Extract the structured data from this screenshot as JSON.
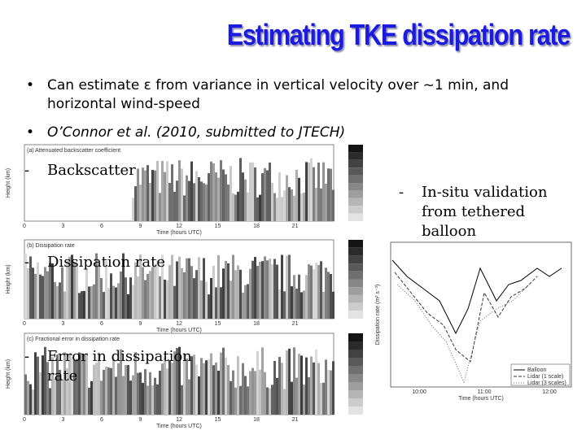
{
  "header": {
    "title": "Estimating TKE dissipation rate"
  },
  "bullets": [
    "Can estimate ε from variance in vertical velocity over ~1 min, and horizontal wind-speed",
    "O’Connor et al. (2010, submitted to JTECH)"
  ],
  "panels": [
    {
      "title": "(a) Attenuated backscatter coefficient",
      "label": "Backscatter",
      "ylabel": "Height (km)",
      "xlabel": "Time (hours UTC)",
      "xticks": [
        "0",
        "3",
        "6",
        "9",
        "12",
        "15",
        "18",
        "21"
      ]
    },
    {
      "title": "(b) Dissipation rate",
      "label": "Dissipation rate",
      "ylabel": "Height (km)",
      "xlabel": "Time (hours UTC)",
      "xticks": [
        "0",
        "3",
        "6",
        "9",
        "12",
        "15",
        "18",
        "21"
      ]
    },
    {
      "title": "(c) Fractional error in dissipation rate",
      "label": "Error in dissipation rate",
      "ylabel": "Height (km)",
      "xlabel": "Time (hours UTC)",
      "xticks": [
        "0",
        "3",
        "6",
        "9",
        "12",
        "15",
        "18",
        "21"
      ]
    }
  ],
  "validation": {
    "label": "In-situ validation from tethered balloon",
    "ylabel": "Dissipation rate (m² s⁻³)",
    "xlabel": "Time (hours UTC)",
    "xticks": [
      "10:00",
      "11:00",
      "12:00"
    ],
    "legend": [
      "Balloon",
      "Lidar (1 scale)",
      "Lidar (3 scales)"
    ]
  }
}
